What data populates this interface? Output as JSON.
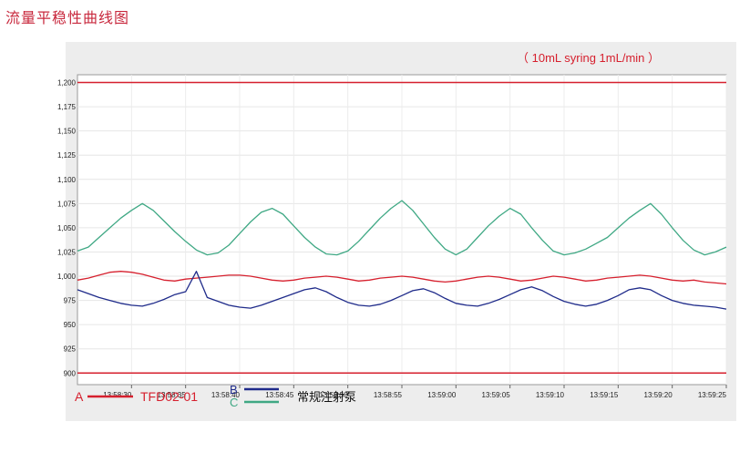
{
  "page": {
    "title": "流量平稳性曲线图"
  },
  "chart_data": {
    "type": "line",
    "annotation": "（ 10mL  syring   1mL/min ）",
    "y_ticks": [
      "1,200",
      "1,175",
      "1,150",
      "1,125",
      "1,100",
      "1,075",
      "1,050",
      "1,025",
      "1,000",
      "975",
      "950",
      "925",
      "900"
    ],
    "ylim": [
      888,
      1208
    ],
    "x_ticks": [
      "13:58:30",
      "13:58:35",
      "13:58:40",
      "13:58:45",
      "13:58:50",
      "13:58:55",
      "13:59:00",
      "13:59:05",
      "13:59:10",
      "13:59:15",
      "13:59:20",
      "13:59:25"
    ],
    "x_range_seconds": [
      0,
      60
    ],
    "x_ticks_seconds": [
      5,
      10,
      15,
      20,
      25,
      30,
      35,
      40,
      45,
      50,
      55,
      60
    ],
    "grid": true,
    "reference_lines": [
      {
        "value": 1200,
        "color": "#d6202e"
      },
      {
        "value": 900,
        "color": "#d6202e"
      }
    ],
    "series": [
      {
        "name": "TFD02-01",
        "legend_letter": "A",
        "color": "#d6202e",
        "x": [
          0,
          1,
          2,
          3,
          4,
          5,
          6,
          7,
          8,
          9,
          10,
          11,
          12,
          13,
          14,
          15,
          16,
          17,
          18,
          19,
          20,
          21,
          22,
          23,
          24,
          25,
          26,
          27,
          28,
          29,
          30,
          31,
          32,
          33,
          34,
          35,
          36,
          37,
          38,
          39,
          40,
          41,
          42,
          43,
          44,
          45,
          46,
          47,
          48,
          49,
          50,
          51,
          52,
          53,
          54,
          55,
          56,
          57,
          58,
          59,
          60
        ],
        "y": [
          996,
          998,
          1001,
          1004,
          1005,
          1004,
          1002,
          999,
          996,
          995,
          997,
          998,
          999,
          1000,
          1001,
          1001,
          1000,
          998,
          996,
          995,
          996,
          998,
          999,
          1000,
          999,
          997,
          995,
          996,
          998,
          999,
          1000,
          999,
          997,
          995,
          994,
          995,
          997,
          999,
          1000,
          999,
          997,
          995,
          996,
          998,
          1000,
          999,
          997,
          995,
          996,
          998,
          999,
          1000,
          1001,
          1000,
          998,
          996,
          995,
          996,
          994,
          993,
          992
        ]
      },
      {
        "name": "",
        "legend_letter": "B",
        "color": "#1f2b8a",
        "x": [
          0,
          1,
          2,
          3,
          4,
          5,
          6,
          7,
          8,
          9,
          10,
          11,
          12,
          13,
          14,
          15,
          16,
          17,
          18,
          19,
          20,
          21,
          22,
          23,
          24,
          25,
          26,
          27,
          28,
          29,
          30,
          31,
          32,
          33,
          34,
          35,
          36,
          37,
          38,
          39,
          40,
          41,
          42,
          43,
          44,
          45,
          46,
          47,
          48,
          49,
          50,
          51,
          52,
          53,
          54,
          55,
          56,
          57,
          58,
          59,
          60
        ],
        "y": [
          986,
          982,
          978,
          975,
          972,
          970,
          969,
          972,
          976,
          981,
          984,
          1005,
          978,
          974,
          970,
          968,
          967,
          970,
          974,
          978,
          982,
          986,
          988,
          984,
          978,
          973,
          970,
          969,
          971,
          975,
          980,
          985,
          987,
          983,
          977,
          972,
          970,
          969,
          972,
          976,
          981,
          986,
          989,
          985,
          979,
          974,
          971,
          969,
          971,
          975,
          980,
          986,
          988,
          986,
          980,
          975,
          972,
          970,
          969,
          968,
          966
        ]
      },
      {
        "name": "常规注射泵",
        "legend_letter": "C",
        "color": "#3fa884",
        "x": [
          0,
          1,
          2,
          3,
          4,
          5,
          6,
          7,
          8,
          9,
          10,
          11,
          12,
          13,
          14,
          15,
          16,
          17,
          18,
          19,
          20,
          21,
          22,
          23,
          24,
          25,
          26,
          27,
          28,
          29,
          30,
          31,
          32,
          33,
          34,
          35,
          36,
          37,
          38,
          39,
          40,
          41,
          42,
          43,
          44,
          45,
          46,
          47,
          48,
          49,
          50,
          51,
          52,
          53,
          54,
          55,
          56,
          57,
          58,
          59,
          60
        ],
        "y": [
          1026,
          1030,
          1040,
          1050,
          1060,
          1068,
          1075,
          1068,
          1057,
          1046,
          1036,
          1027,
          1022,
          1024,
          1032,
          1044,
          1056,
          1066,
          1070,
          1064,
          1052,
          1040,
          1030,
          1023,
          1022,
          1026,
          1036,
          1048,
          1060,
          1070,
          1078,
          1068,
          1054,
          1040,
          1028,
          1022,
          1028,
          1040,
          1052,
          1062,
          1070,
          1064,
          1050,
          1037,
          1026,
          1022,
          1024,
          1028,
          1034,
          1040,
          1050,
          1060,
          1068,
          1075,
          1064,
          1050,
          1037,
          1027,
          1022,
          1025,
          1030
        ]
      }
    ],
    "legend": {
      "a_label": "A",
      "a_name": "TFD02-01",
      "b_label": "B",
      "c_label": "C",
      "bc_name": "常规注射泵"
    }
  }
}
